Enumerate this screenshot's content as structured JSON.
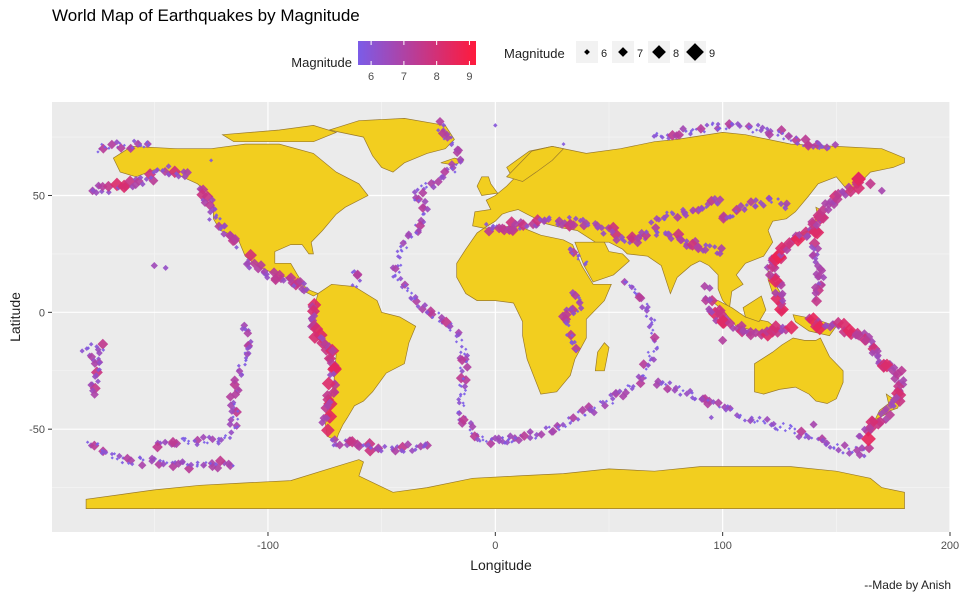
{
  "chart_data": {
    "type": "scatter",
    "title": "World Map of Earthquakes by Magnitude",
    "xlabel": "Longitude",
    "ylabel": "Latitude",
    "xlim": [
      -195,
      200
    ],
    "ylim": [
      -94,
      90
    ],
    "x_ticks": [
      -100,
      0,
      100,
      200
    ],
    "y_ticks": [
      -50,
      0,
      50
    ],
    "grid": true,
    "background": "#ebebeb",
    "land_color": "#f2ce1f",
    "color_scale": {
      "title": "Magnitude",
      "low": "#7b5ce8",
      "high": "#ff1a3c",
      "domain": [
        5.6,
        9.2
      ],
      "ticks": [
        6,
        7,
        8,
        9
      ]
    },
    "size_legend": {
      "title": "Magnitude",
      "values": [
        6,
        7,
        8,
        9
      ]
    },
    "legend_placement": "top",
    "caption": "--Made by Anish",
    "belts": [
      {
        "points": [
          [
            -180,
            -18
          ],
          [
            -176,
            -21
          ],
          [
            -175,
            -25
          ],
          [
            -177,
            -30
          ],
          [
            -178,
            -36
          ]
        ],
        "mag": 6.5
      },
      {
        "points": [
          [
            -180,
            -15
          ],
          [
            -174,
            -15
          ],
          [
            -172,
            -16
          ]
        ],
        "mag": 6.3
      },
      {
        "points": [
          [
            -178,
            52
          ],
          [
            -170,
            53
          ],
          [
            -160,
            55
          ],
          [
            -152,
            58
          ],
          [
            -146,
            61
          ],
          [
            -140,
            60
          ],
          [
            -135,
            58
          ]
        ],
        "mag": 6.6
      },
      {
        "points": [
          [
            -130,
            52
          ],
          [
            -126,
            47
          ],
          [
            -124,
            41
          ],
          [
            -120,
            36
          ],
          [
            -117,
            33
          ],
          [
            -114,
            28
          ]
        ],
        "mag": 6.3
      },
      {
        "points": [
          [
            -110,
            24
          ],
          [
            -105,
            19
          ],
          [
            -98,
            16
          ],
          [
            -92,
            14
          ],
          [
            -86,
            12
          ],
          [
            -83,
            8
          ]
        ],
        "mag": 6.7
      },
      {
        "points": [
          [
            -80,
            3
          ],
          [
            -79,
            -2
          ],
          [
            -80,
            -6
          ],
          [
            -77,
            -12
          ],
          [
            -73,
            -17
          ],
          [
            -70,
            -22
          ],
          [
            -71,
            -28
          ],
          [
            -72,
            -34
          ],
          [
            -73,
            -38
          ],
          [
            -74,
            -44
          ],
          [
            -75,
            -50
          ]
        ],
        "mag": 7.0
      },
      {
        "points": [
          [
            -72,
            -55
          ],
          [
            -62,
            -57
          ],
          [
            -50,
            -58
          ],
          [
            -35,
            -58
          ],
          [
            -28,
            -57
          ]
        ],
        "mag": 6.4
      },
      {
        "points": [
          [
            -62,
            18
          ],
          [
            -61,
            14
          ],
          [
            -62,
            11
          ]
        ],
        "mag": 6.3
      },
      {
        "points": [
          [
            -25,
            80
          ],
          [
            -18,
            72
          ],
          [
            -15,
            65
          ],
          [
            -28,
            55
          ],
          [
            -35,
            50
          ],
          [
            -30,
            42
          ],
          [
            -40,
            30
          ],
          [
            -45,
            15
          ],
          [
            -32,
            2
          ],
          [
            -20,
            -5
          ],
          [
            -14,
            -15
          ],
          [
            -14,
            -30
          ],
          [
            -15,
            -45
          ],
          [
            -5,
            -55
          ],
          [
            10,
            -55
          ]
        ],
        "mag": 5.9
      },
      {
        "points": [
          [
            -110,
            -5
          ],
          [
            -108,
            -15
          ],
          [
            -112,
            -25
          ],
          [
            -115,
            -35
          ],
          [
            -115,
            -50
          ],
          [
            -120,
            -55
          ],
          [
            -140,
            -55
          ],
          [
            -150,
            -57
          ]
        ],
        "mag": 5.9
      },
      {
        "points": [
          [
            0,
            -55
          ],
          [
            20,
            -52
          ],
          [
            35,
            -45
          ],
          [
            55,
            -35
          ],
          [
            65,
            -28
          ],
          [
            70,
            -15
          ],
          [
            68,
            0
          ],
          [
            62,
            10
          ],
          [
            55,
            13
          ]
        ],
        "mag": 5.9
      },
      {
        "points": [
          [
            70,
            -30
          ],
          [
            90,
            -37
          ],
          [
            110,
            -45
          ],
          [
            130,
            -50
          ],
          [
            150,
            -58
          ],
          [
            165,
            -60
          ]
        ],
        "mag": 5.9
      },
      {
        "points": [
          [
            -5,
            36
          ],
          [
            10,
            37
          ],
          [
            20,
            39
          ],
          [
            30,
            39
          ],
          [
            40,
            38
          ],
          [
            50,
            35
          ],
          [
            60,
            30
          ],
          [
            70,
            35
          ],
          [
            80,
            32
          ],
          [
            90,
            28
          ],
          [
            100,
            26
          ]
        ],
        "mag": 6.5
      },
      {
        "points": [
          [
            35,
            10
          ],
          [
            38,
            5
          ],
          [
            30,
            -3
          ],
          [
            33,
            -10
          ],
          [
            35,
            -18
          ]
        ],
        "mag": 6.2
      },
      {
        "points": [
          [
            40,
            20
          ],
          [
            35,
            25
          ],
          [
            32,
            28
          ]
        ],
        "mag": 5.9
      },
      {
        "points": [
          [
            93,
            10
          ],
          [
            95,
            2
          ],
          [
            100,
            -4
          ],
          [
            106,
            -7
          ],
          [
            115,
            -9
          ],
          [
            122,
            -8
          ],
          [
            130,
            -7
          ]
        ],
        "mag": 7.1
      },
      {
        "points": [
          [
            125,
            0
          ],
          [
            126,
            7
          ],
          [
            122,
            14
          ],
          [
            121,
            22
          ],
          [
            125,
            25
          ],
          [
            130,
            30
          ],
          [
            140,
            35
          ],
          [
            142,
            40
          ],
          [
            144,
            45
          ],
          [
            150,
            48
          ],
          [
            156,
            52
          ],
          [
            162,
            57
          ]
        ],
        "mag": 7.2
      },
      {
        "points": [
          [
            140,
            30
          ],
          [
            142,
            20
          ],
          [
            144,
            14
          ],
          [
            140,
            5
          ]
        ],
        "mag": 6.6
      },
      {
        "points": [
          [
            138,
            -4
          ],
          [
            146,
            -6
          ],
          [
            152,
            -6
          ],
          [
            158,
            -9
          ],
          [
            166,
            -13
          ],
          [
            168,
            -18
          ],
          [
            170,
            -22
          ],
          [
            177,
            -25
          ],
          [
            178,
            -30
          ],
          [
            177,
            -35
          ],
          [
            176,
            -39
          ],
          [
            173,
            -43
          ],
          [
            168,
            -46
          ],
          [
            165,
            -50
          ],
          [
            160,
            -55
          ]
        ],
        "mag": 7.0
      },
      {
        "points": [
          [
            -178,
            -55
          ],
          [
            -165,
            -63
          ],
          [
            -150,
            -64
          ],
          [
            -130,
            -66
          ],
          [
            -115,
            -65
          ]
        ],
        "mag": 6.0
      },
      {
        "points": [
          [
            70,
            75
          ],
          [
            100,
            80
          ],
          [
            120,
            78
          ],
          [
            135,
            73
          ],
          [
            150,
            70
          ]
        ],
        "mag": 5.9
      },
      {
        "points": [
          [
            -175,
            70
          ],
          [
            -160,
            72
          ],
          [
            -150,
            73
          ]
        ],
        "mag": 5.8
      },
      {
        "points": [
          [
            100,
            40
          ],
          [
            110,
            45
          ],
          [
            120,
            48
          ],
          [
            130,
            45
          ]
        ],
        "mag": 6.2
      },
      {
        "points": [
          [
            70,
            40
          ],
          [
            80,
            42
          ],
          [
            90,
            44
          ],
          [
            100,
            48
          ]
        ],
        "mag": 6.3
      }
    ],
    "scattered": [
      {
        "x": -150,
        "y": 20,
        "mag": 6.6
      },
      {
        "x": -145,
        "y": 19,
        "mag": 6.3
      },
      {
        "x": 165,
        "y": 55,
        "mag": 7.5
      },
      {
        "x": 170,
        "y": 52,
        "mag": 6.8
      },
      {
        "x": 160,
        "y": -10,
        "mag": 7.3
      },
      {
        "x": 100,
        "y": -12,
        "mag": 7.1
      },
      {
        "x": 95,
        "y": -45,
        "mag": 6.1
      },
      {
        "x": -30,
        "y": 0,
        "mag": 6.1
      },
      {
        "x": 140,
        "y": -48,
        "mag": 6.8
      },
      {
        "x": 0,
        "y": 80,
        "mag": 5.9
      },
      {
        "x": 30,
        "y": 72,
        "mag": 5.8
      },
      {
        "x": -125,
        "y": 65,
        "mag": 5.8
      }
    ]
  }
}
